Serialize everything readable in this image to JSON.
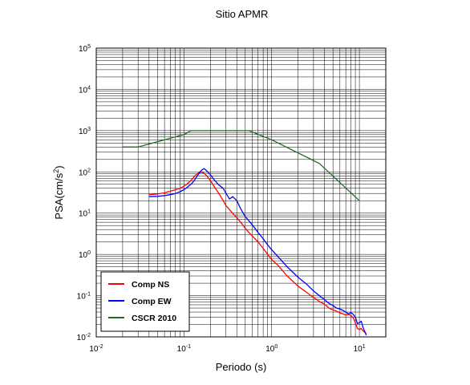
{
  "chart_data": {
    "type": "line",
    "title": "Sitio APMR",
    "xlabel": "Periodo (s)",
    "ylabel_base": "PSA(cm/s",
    "ylabel_sup": "2",
    "ylabel_tail": ")",
    "x_scale": "log",
    "y_scale": "log",
    "xlim": [
      0.01,
      20
    ],
    "ylim": [
      0.01,
      100000
    ],
    "grid": true,
    "legend_position": "bottom-left",
    "x_ticks": [
      {
        "value": 0.01,
        "base": "10",
        "exp": "-2"
      },
      {
        "value": 0.1,
        "base": "10",
        "exp": "-1"
      },
      {
        "value": 1,
        "base": "10",
        "exp": "0"
      },
      {
        "value": 10,
        "base": "10",
        "exp": "1"
      }
    ],
    "y_ticks": [
      {
        "value": 0.01,
        "base": "10",
        "exp": "-2"
      },
      {
        "value": 0.1,
        "base": "10",
        "exp": "-1"
      },
      {
        "value": 1,
        "base": "10",
        "exp": "0"
      },
      {
        "value": 10,
        "base": "10",
        "exp": "1"
      },
      {
        "value": 100,
        "base": "10",
        "exp": "2"
      },
      {
        "value": 1000,
        "base": "10",
        "exp": "3"
      },
      {
        "value": 10000,
        "base": "10",
        "exp": "4"
      },
      {
        "value": 100000,
        "base": "10",
        "exp": "5"
      }
    ],
    "series": [
      {
        "name": "Comp NS",
        "color": "#ff0000",
        "x": [
          0.04,
          0.05,
          0.06,
          0.07,
          0.08,
          0.09,
          0.1,
          0.11,
          0.12,
          0.13,
          0.14,
          0.15,
          0.16,
          0.17,
          0.18,
          0.2,
          0.22,
          0.25,
          0.28,
          0.3,
          0.35,
          0.4,
          0.45,
          0.5,
          0.55,
          0.6,
          0.7,
          0.8,
          0.9,
          1.0,
          1.2,
          1.5,
          2.0,
          2.5,
          3.0,
          3.5,
          4.0,
          4.5,
          5.0,
          5.5,
          6.0,
          6.5,
          7.0,
          7.5,
          8.0,
          8.5,
          9.0,
          9.5,
          10.0,
          10.5,
          11.0,
          12.0
        ],
        "y": [
          28,
          29,
          31,
          34,
          37,
          40,
          45,
          52,
          62,
          75,
          88,
          96,
          98,
          92,
          82,
          62,
          45,
          30,
          20,
          15.5,
          10.5,
          7.8,
          5.8,
          4.3,
          3.4,
          2.8,
          2.0,
          1.4,
          1.0,
          0.75,
          0.52,
          0.3,
          0.17,
          0.12,
          0.09,
          0.072,
          0.062,
          0.05,
          0.045,
          0.042,
          0.038,
          0.036,
          0.034,
          0.035,
          0.033,
          0.029,
          0.022,
          0.016,
          0.015,
          0.016,
          0.014,
          0.012
        ]
      },
      {
        "name": "Comp EW",
        "color": "#0000ff",
        "x": [
          0.04,
          0.05,
          0.06,
          0.07,
          0.08,
          0.09,
          0.1,
          0.11,
          0.12,
          0.13,
          0.14,
          0.15,
          0.16,
          0.17,
          0.18,
          0.2,
          0.22,
          0.25,
          0.28,
          0.3,
          0.33,
          0.36,
          0.4,
          0.45,
          0.5,
          0.55,
          0.6,
          0.7,
          0.8,
          0.9,
          1.0,
          1.2,
          1.5,
          2.0,
          2.5,
          3.0,
          3.5,
          4.0,
          4.5,
          5.0,
          5.5,
          6.0,
          6.5,
          7.0,
          7.5,
          8.0,
          8.5,
          9.0,
          9.5,
          10.0,
          10.5,
          11.0,
          12.0
        ],
        "y": [
          25,
          25.5,
          26.5,
          28,
          30,
          33,
          37,
          43,
          50,
          60,
          76,
          95,
          112,
          120,
          108,
          85,
          65,
          48,
          40,
          31,
          22,
          25,
          20,
          12,
          8.2,
          6.5,
          5.2,
          3.4,
          2.4,
          1.7,
          1.3,
          0.85,
          0.5,
          0.28,
          0.19,
          0.13,
          0.1,
          0.08,
          0.065,
          0.057,
          0.05,
          0.047,
          0.044,
          0.04,
          0.036,
          0.039,
          0.035,
          0.03,
          0.021,
          0.022,
          0.024,
          0.017,
          0.011
        ]
      },
      {
        "name": "CSCR 2010",
        "color": "#1e6b1e",
        "x": [
          0.02,
          0.03,
          0.1,
          0.12,
          0.55,
          1.0,
          3.5,
          10.0
        ],
        "y": [
          400,
          400,
          800,
          1000,
          1000,
          600,
          160,
          20
        ]
      }
    ]
  }
}
